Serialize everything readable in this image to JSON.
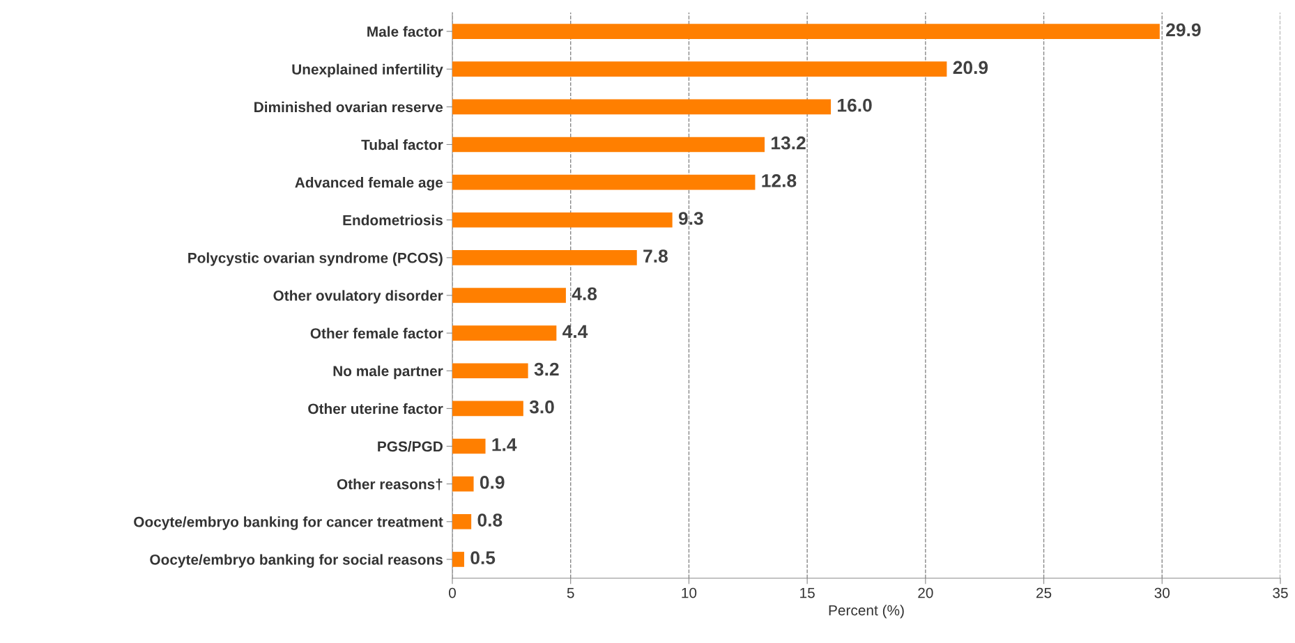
{
  "chart_data": {
    "type": "bar",
    "orientation": "horizontal",
    "xlabel": "Percent (%)",
    "categories": [
      "Male factor",
      "Unexplained infertility",
      "Diminished ovarian reserve",
      "Tubal factor",
      "Advanced female age",
      "Endometriosis",
      "Polycystic ovarian syndrome (PCOS)",
      "Other ovulatory disorder",
      "Other female factor",
      "No male partner",
      "Other uterine factor",
      "PGS/PGD",
      "Other reasons†",
      "Oocyte/embryo banking for cancer treatment",
      "Oocyte/embryo banking for social reasons"
    ],
    "values": [
      29.9,
      20.9,
      16.0,
      13.2,
      12.8,
      9.3,
      7.8,
      4.8,
      4.4,
      3.2,
      3.0,
      1.4,
      0.9,
      0.8,
      0.5
    ],
    "value_labels": [
      "29.9",
      "20.9",
      "16.0",
      "13.2",
      "12.8",
      "9.3",
      "7.8",
      "4.8",
      "4.4",
      "3.2",
      "3.0",
      "1.4",
      "0.9",
      "0.8",
      "0.5"
    ],
    "color": "#ff7f00",
    "xlim": [
      0,
      35
    ],
    "xticks": [
      0,
      5,
      10,
      15,
      20,
      25,
      30,
      35
    ],
    "grid": "x",
    "line_style": "dashed"
  }
}
